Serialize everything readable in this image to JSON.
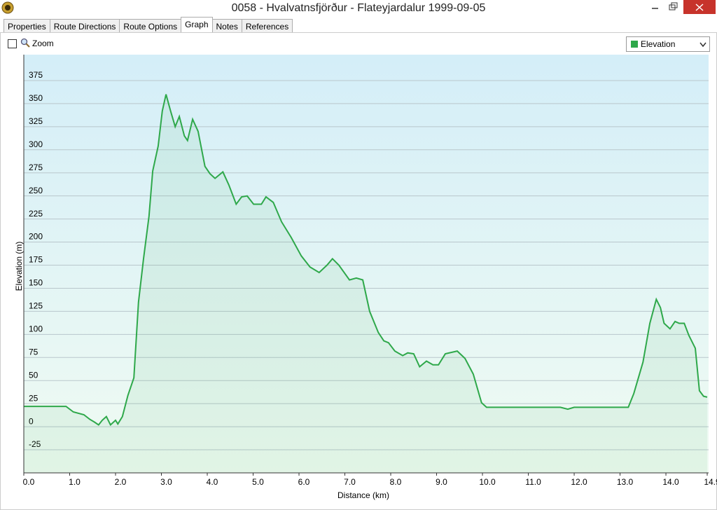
{
  "window": {
    "title": "0058 - Hvalvatnsfjörður - Flateyjardalur 1999-09-05"
  },
  "tabs": [
    "Properties",
    "Route Directions",
    "Route Options",
    "Graph",
    "Notes",
    "References"
  ],
  "toolbar": {
    "zoom_label": "Zoom"
  },
  "chart_data": {
    "type": "line",
    "x_label": "Distance  (km)",
    "y_label": "Elevation (m)",
    "x": [
      0,
      0.92,
      1.08,
      1.31,
      1.44,
      1.54,
      1.63,
      1.71,
      1.8,
      1.89,
      2.0,
      2.05,
      2.15,
      2.27,
      2.4,
      2.5,
      2.61,
      2.73,
      2.81,
      2.93,
      3.02,
      3.1,
      3.2,
      3.3,
      3.39,
      3.5,
      3.57,
      3.68,
      3.8,
      3.95,
      4.06,
      4.17,
      4.34,
      4.47,
      4.63,
      4.75,
      4.87,
      5.01,
      5.18,
      5.28,
      5.44,
      5.62,
      5.83,
      6.05,
      6.24,
      6.44,
      6.61,
      6.73,
      6.87,
      7.1,
      7.25,
      7.39,
      7.54,
      7.73,
      7.85,
      7.95,
      8.09,
      8.26,
      8.37,
      8.5,
      8.63,
      8.78,
      8.92,
      9.04,
      9.19,
      9.45,
      9.62,
      9.8,
      9.98,
      10.09,
      11.7,
      11.86,
      12.0,
      13.18,
      13.3,
      13.5,
      13.65,
      13.79,
      13.88,
      13.96,
      14.09,
      14.2,
      14.29,
      14.4,
      14.5,
      14.64,
      14.73,
      14.82,
      14.9
    ],
    "series": [
      {
        "name": "Elevation",
        "color": "#2ea84a",
        "values": [
          22,
          22,
          16,
          13,
          8,
          5,
          2,
          7,
          11,
          2,
          7,
          3,
          11,
          34,
          53,
          135,
          182,
          228,
          277,
          304,
          342,
          360,
          342,
          325,
          336,
          315,
          310,
          333,
          320,
          282,
          274,
          269,
          276,
          262,
          241,
          249,
          250,
          241,
          241,
          249,
          243,
          222,
          205,
          185,
          173,
          167,
          175,
          182,
          175,
          159,
          161,
          159,
          125,
          102,
          93,
          91,
          82,
          77,
          80,
          79,
          65,
          71,
          67,
          67,
          79,
          82,
          74,
          57,
          26,
          21,
          21,
          19,
          21,
          21,
          36,
          70,
          112,
          138,
          129,
          112,
          106,
          114,
          112,
          112,
          99,
          85,
          39,
          33,
          32
        ]
      }
    ],
    "xlim": [
      0,
      14.9
    ],
    "ylim": [
      -50,
      400
    ],
    "xticks": [
      {
        "value": 0,
        "label": "0.0"
      },
      {
        "value": 1,
        "label": "1.0"
      },
      {
        "value": 2,
        "label": "2.0"
      },
      {
        "value": 3,
        "label": "3.0"
      },
      {
        "value": 4,
        "label": "4.0"
      },
      {
        "value": 5,
        "label": "5.0"
      },
      {
        "value": 6,
        "label": "6.0"
      },
      {
        "value": 7,
        "label": "7.0"
      },
      {
        "value": 8,
        "label": "8.0"
      },
      {
        "value": 9,
        "label": "9.0"
      },
      {
        "value": 10,
        "label": "10.0"
      },
      {
        "value": 11,
        "label": "11.0"
      },
      {
        "value": 12,
        "label": "12.0"
      },
      {
        "value": 13,
        "label": "13.0"
      },
      {
        "value": 14,
        "label": "14.0"
      },
      14.9
    ],
    "yticks": [
      -25,
      0,
      25,
      50,
      75,
      100,
      125,
      150,
      175,
      200,
      225,
      250,
      275,
      300,
      325,
      350,
      375
    ],
    "grid": true
  }
}
